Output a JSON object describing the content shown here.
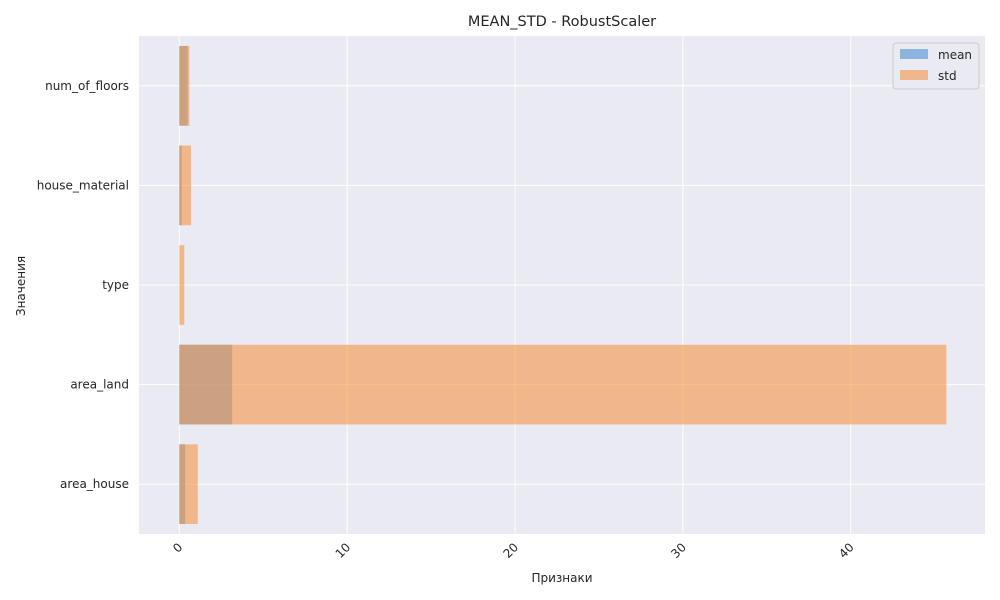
{
  "chart_data": {
    "type": "bar",
    "orientation": "horizontal",
    "title": "MEAN_STD - RobustScaler",
    "xlabel": "Признаки",
    "ylabel": "Значения",
    "categories": [
      "area_house",
      "area_land",
      "type",
      "house_material",
      "num_of_floors"
    ],
    "series": [
      {
        "name": "mean",
        "color": "#4c8fd1",
        "opacity": 0.6,
        "values": [
          0.35,
          3.15,
          0.0,
          0.15,
          0.5
        ]
      },
      {
        "name": "std",
        "color": "#f59545",
        "opacity": 0.6,
        "values": [
          1.1,
          45.7,
          0.3,
          0.7,
          0.6
        ]
      }
    ],
    "xlim": [
      -2.4,
      48.0
    ],
    "xticks": [
      0,
      10,
      20,
      30,
      40
    ],
    "xtick_rotation": -45,
    "grid": true,
    "legend_position": "top-right",
    "colors": {
      "plot_background": "#eaeaf2",
      "grid": "#ffffff"
    }
  }
}
